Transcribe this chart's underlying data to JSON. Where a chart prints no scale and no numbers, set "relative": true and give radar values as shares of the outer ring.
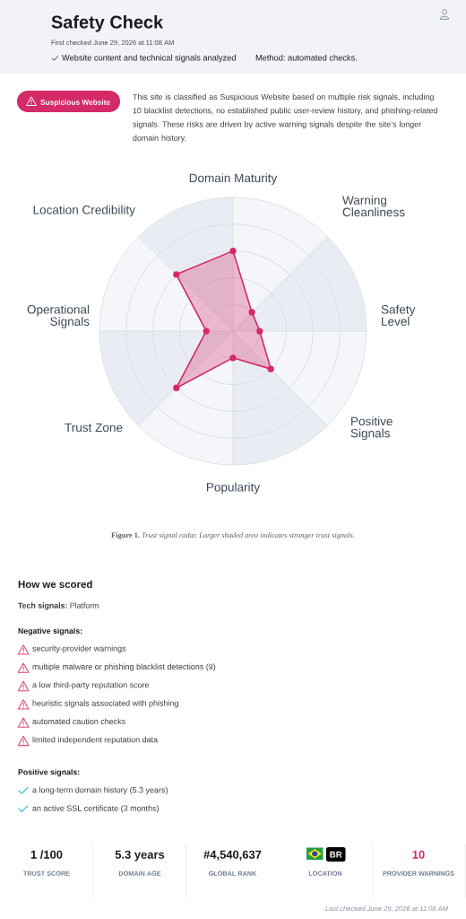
{
  "chart_data": {
    "type": "radar",
    "title": "Safety Check",
    "subtitle": "First checked June 29, 2026 at 11:08 AM",
    "categories": [
      "Domain Maturity",
      "Warning Cleanliness",
      "Safety Level",
      "Positive Signals",
      "Popularity",
      "Trust Zone",
      "Operational Signals",
      "Location Credibility"
    ],
    "series": [
      {
        "color": "#d42a67",
        "values": [
          0.6,
          0.2,
          0.2,
          0.4,
          0.2,
          0.6,
          0.2,
          0.6
        ]
      }
    ],
    "relative": true,
    "marker": "circle",
    "grid": true,
    "annotations": [
      "Website content and technical signals analyzed",
      "Method: automated checks.",
      "Suspicious Website",
      "This site is classified as Suspicious Website based on multiple risk signals, including 10 blacklist detections, no established public user-review history, and phishing-related signals. These risks are driven by active warning signals despite the site’s longer domain history.",
      "**Figure 1.** *Trust signal radar. Larger shaded area indicates stronger trust signals.*",
      "How we scored",
      "**Tech signals:** Platform",
      "Negative signals:",
      "security-provider warnings",
      "multiple malware or phishing blacklist detections (9)",
      "a low third-party reputation score",
      "heuristic signals associated with phishing",
      "automated caution checks",
      "limited independent reputation data",
      "Positive signals:",
      "a long-term domain history (5.3 years)",
      "an active SSL certificate (3 months)",
      "1 /100",
      "TRUST SCORE",
      "5.3 years",
      "DOMAIN AGE",
      "#4,540,637",
      "GLOBAL RANK",
      "BR",
      "LOCATION",
      "10",
      "PROVIDER WARNINGS",
      "Last checked June 29, 2026 at 11:08 AM"
    ]
  }
}
